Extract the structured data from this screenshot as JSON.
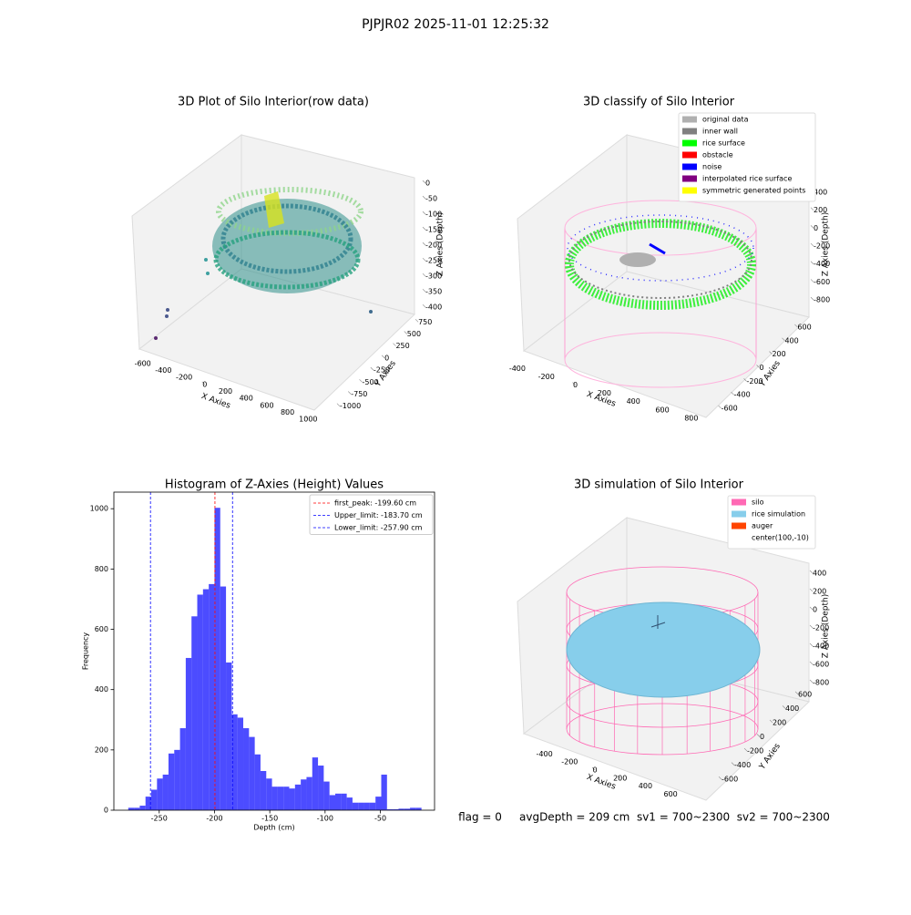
{
  "title": "PJPJR02 2025-11-01 12:25:32",
  "footer": "flag = 0     avgDepth = 209 cm  sv1 = 700~2300  sv2 = 700~2300",
  "chart_data": [
    {
      "type": "scatter3d",
      "title": "3D Plot of Silo Interior(row data)",
      "xlabel": "X Axies",
      "ylabel": "Y Axies",
      "zlabel": "Z Axies (Depth)",
      "xlim": [
        -650,
        1050
      ],
      "xticks": [
        -600,
        -400,
        -200,
        0,
        200,
        400,
        600,
        800,
        1000
      ],
      "ylim": [
        -1100,
        850
      ],
      "yticks": [
        -1000,
        -750,
        -500,
        -250,
        0,
        250,
        500,
        750
      ],
      "zlim": [
        -420,
        15
      ],
      "zticks": [
        -400,
        -350,
        -300,
        -250,
        -200,
        -150,
        -100,
        -50,
        0
      ]
    },
    {
      "type": "scatter3d",
      "title": "3D classify of Silo Interior",
      "xlabel": "X Axies",
      "ylabel": "Y Axies",
      "zlabel": "Z Axies (Depth)",
      "xlim": [
        -500,
        870
      ],
      "xticks": [
        -400,
        -200,
        0,
        200,
        400,
        600,
        800
      ],
      "ylim": [
        -680,
        680
      ],
      "yticks": [
        -600,
        -400,
        -200,
        0,
        200,
        400,
        600
      ],
      "zlim": [
        -880,
        420
      ],
      "zticks": [
        -800,
        -600,
        -400,
        -200,
        0,
        200,
        400
      ],
      "legend": [
        {
          "name": "original data",
          "color": "#b0b0b0"
        },
        {
          "name": "inner wall",
          "color": "#808080"
        },
        {
          "name": "rice surface",
          "color": "#00ff00"
        },
        {
          "name": "obstacle",
          "color": "#ff0000"
        },
        {
          "name": "noise",
          "color": "#0000ff"
        },
        {
          "name": "interpolated rice surface",
          "color": "#800080"
        },
        {
          "name": "symmetric generated points",
          "color": "#ffff00"
        }
      ]
    },
    {
      "type": "histogram",
      "title": "Histogram of Z-Axies (Height) Values",
      "xlabel": "Depth (cm)",
      "ylabel": "Frequency",
      "color": "#0000ff",
      "alpha": 0.7,
      "xlim": [
        -291,
        -1
      ],
      "xticks": [
        -250,
        -200,
        -150,
        -100,
        -50
      ],
      "ylim": [
        0,
        1055
      ],
      "yticks": [
        0,
        200,
        400,
        600,
        800,
        1000
      ],
      "bins": [
        -278,
        -272.8,
        -267.6,
        -262.4,
        -257.2,
        -252,
        -246.8,
        -241.6,
        -236.4,
        -231.2,
        -226,
        -220.8,
        -215.6,
        -210.4,
        -205.2,
        -200,
        -194.8,
        -189.6,
        -184.4,
        -179.2,
        -174,
        -168.8,
        -163.6,
        -158.4,
        -153.2,
        -148,
        -142.8,
        -137.6,
        -132.4,
        -127.2,
        -122,
        -116.8,
        -111.6,
        -106.4,
        -101.2,
        -96,
        -90.8,
        -85.6,
        -80.4,
        -75.2,
        -70,
        -64.8,
        -59.6,
        -54.4,
        -49.2,
        -44,
        -38.8,
        -33.6,
        -28.4,
        -23.2,
        -18,
        -12.8
      ],
      "counts": [
        8,
        8,
        15,
        45,
        68,
        105,
        118,
        188,
        200,
        272,
        505,
        643,
        715,
        733,
        750,
        1003,
        742,
        490,
        318,
        307,
        272,
        243,
        185,
        130,
        105,
        78,
        78,
        78,
        72,
        85,
        102,
        110,
        175,
        148,
        95,
        50,
        55,
        55,
        42,
        25,
        25,
        25,
        25,
        45,
        118,
        3,
        3,
        5,
        5,
        8,
        8
      ],
      "vlines": [
        {
          "label": "first_peak: -199.60 cm",
          "value": -199.6,
          "color": "#ff0000"
        },
        {
          "label": "Upper_limit: -183.70 cm",
          "value": -183.7,
          "color": "#0000ff"
        },
        {
          "label": "Lower_limit: -257.90 cm",
          "value": -257.9,
          "color": "#0000ff"
        }
      ],
      "legend_loc": "upper right"
    },
    {
      "type": "scatter3d",
      "title": "3D simulation of Silo Interior",
      "xlabel": "X Axies",
      "ylabel": "Y Axies",
      "zlabel": "Z Axies (Depth)",
      "xlim": [
        -520,
        700
      ],
      "xticks": [
        -400,
        -200,
        0,
        200,
        400,
        600
      ],
      "ylim": [
        -700,
        700
      ],
      "yticks": [
        -600,
        -400,
        -200,
        0,
        200,
        400,
        600
      ],
      "zlim": [
        -880,
        460
      ],
      "zticks": [
        -800,
        -600,
        -400,
        -200,
        0,
        200,
        400
      ],
      "legend": [
        {
          "name": "silo",
          "color": "#ff69b4"
        },
        {
          "name": "rice simulation",
          "color": "#87ceeb"
        },
        {
          "name": "auger",
          "color": "#ff4500"
        },
        {
          "name": "center(100,-10)",
          "color": "#ffffff"
        }
      ]
    }
  ]
}
